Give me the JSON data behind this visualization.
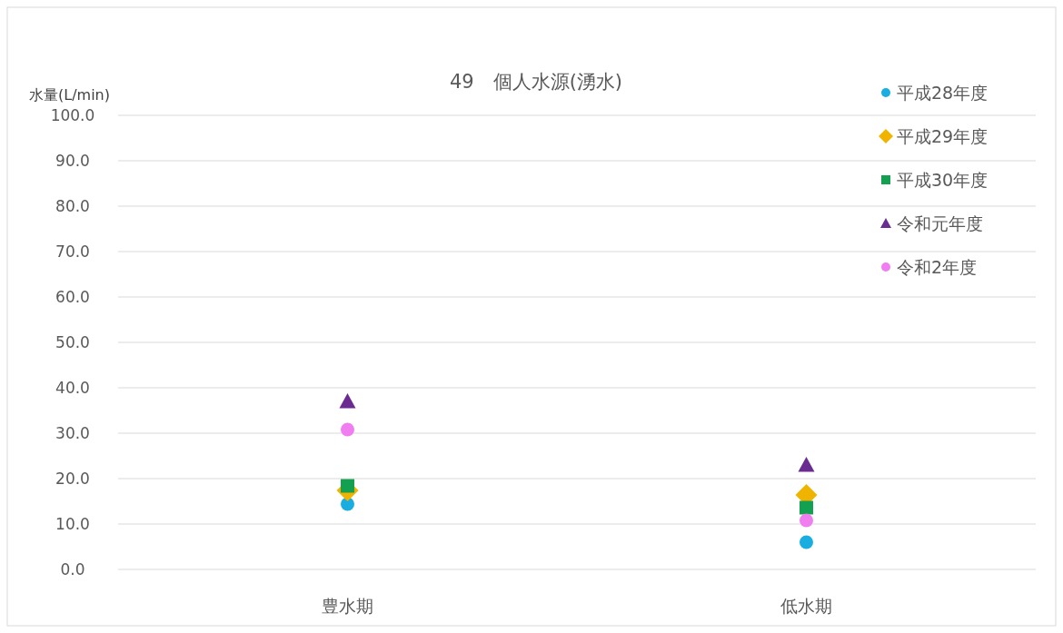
{
  "chart_data": {
    "type": "scatter",
    "title": "49　個人水源(湧水)",
    "ylabel": "水量(L/min)",
    "categories": [
      "豊水期",
      "低水期"
    ],
    "series": [
      {
        "name": "平成28年度",
        "color": "#1aaee0",
        "marker": "circle",
        "values": [
          14.4,
          6
        ]
      },
      {
        "name": "平成29年度",
        "color": "#f0b400",
        "marker": "diamond",
        "values": [
          17.4,
          16.4
        ]
      },
      {
        "name": "平成30年度",
        "color": "#13a050",
        "marker": "square",
        "values": [
          18.4,
          13.6
        ]
      },
      {
        "name": "令和元年度",
        "color": "#6a2c91",
        "marker": "triangle",
        "values": [
          37,
          23
        ]
      },
      {
        "name": "令和2年度",
        "color": "#f07ef0",
        "marker": "circle",
        "values": [
          30.8,
          10.8
        ]
      }
    ],
    "ylim": [
      0,
      100
    ],
    "yticks": [
      {
        "value": 0,
        "label": "0.0"
      },
      {
        "value": 10,
        "label": "10.0"
      },
      {
        "value": 20,
        "label": "20.0"
      },
      {
        "value": 30,
        "label": "30.0"
      },
      {
        "value": 40,
        "label": "40.0"
      },
      {
        "value": 50,
        "label": "50.0"
      },
      {
        "value": 60,
        "label": "60.0"
      },
      {
        "value": 70,
        "label": "70.0"
      },
      {
        "value": 80,
        "label": "80.0"
      },
      {
        "value": 90,
        "label": "90.0"
      },
      {
        "value": 100,
        "label": "100.0"
      }
    ],
    "grid": "y",
    "legend": "top right"
  }
}
